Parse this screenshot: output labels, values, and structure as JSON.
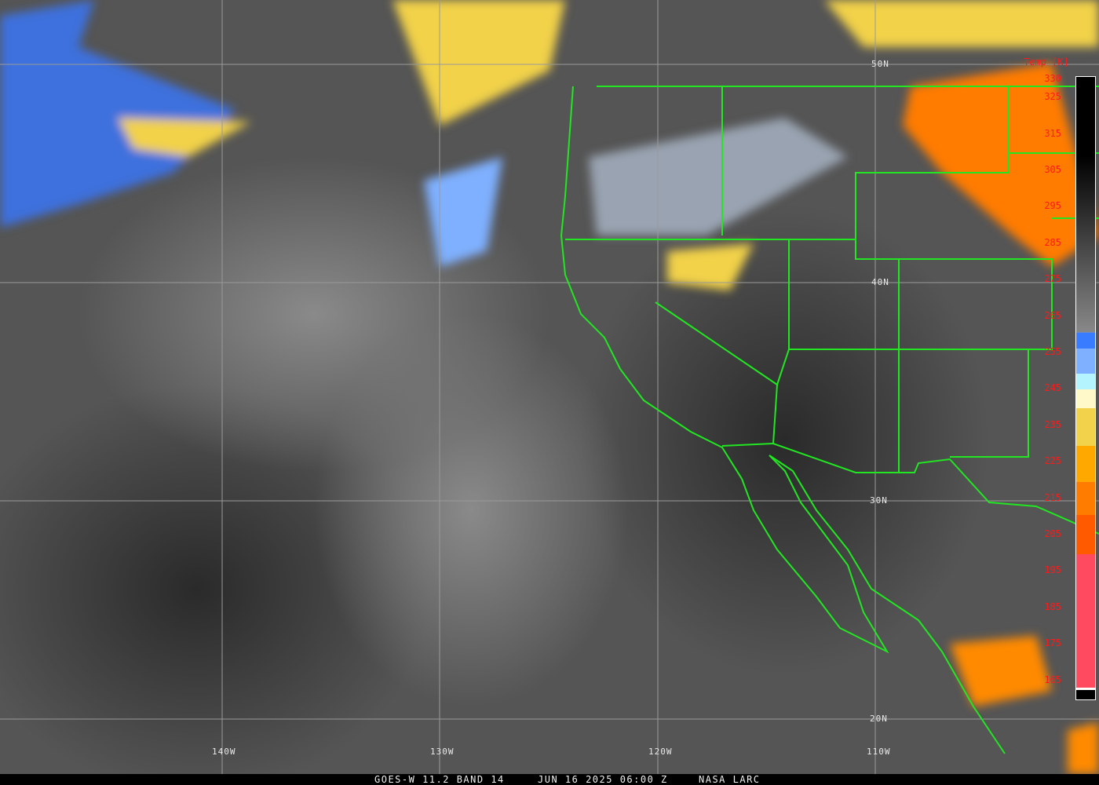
{
  "map": {
    "latitude_labels": [
      "50N",
      "40N",
      "30N",
      "20N"
    ],
    "longitude_labels": [
      "140W",
      "130W",
      "120W",
      "110W"
    ],
    "border_color": "#22e622",
    "grid_color": "#9a9a9a"
  },
  "colorbar": {
    "title": "Temp [K]",
    "ticks": [
      "330",
      "325",
      "315",
      "305",
      "295",
      "285",
      "275",
      "265",
      "255",
      "245",
      "235",
      "225",
      "215",
      "205",
      "195",
      "185",
      "175",
      "165"
    ],
    "label_color": "#ff1a1a"
  },
  "caption": {
    "satellite": "GOES-W 11.2 BAND 14",
    "datetime": "JUN 16 2025 06:00 Z",
    "source": "NASA LARC"
  }
}
